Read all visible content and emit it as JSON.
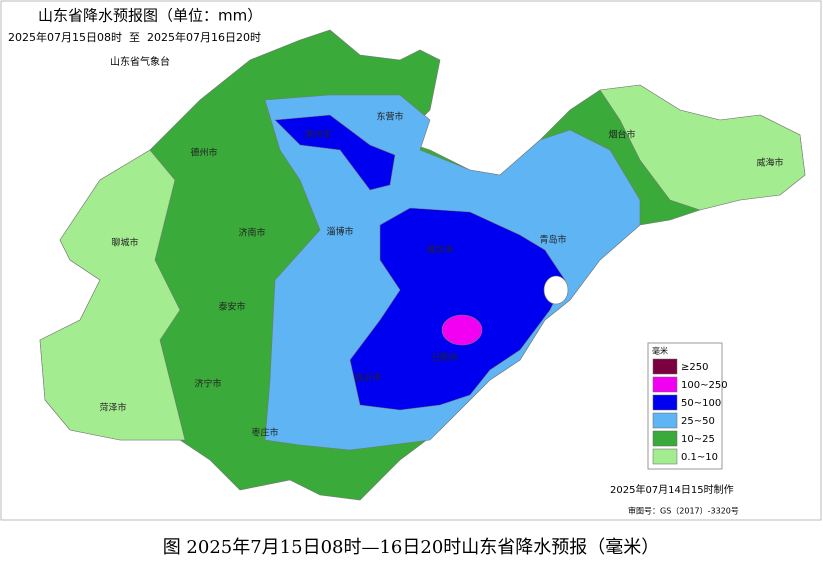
{
  "header": {
    "title": "山东省降水预报图（单位：mm）",
    "period": "2025年07月15日08时  至  2025年07月16日20时",
    "issuer": "山东省气象台"
  },
  "cities": [
    "滨州市",
    "东营市",
    "烟台市",
    "威海市",
    "德州市",
    "聊城市",
    "济南市",
    "淄博市",
    "潍坊市",
    "青岛市",
    "泰安市",
    "日照市",
    "济宁市",
    "临沂市",
    "菏泽市",
    "枣庄市"
  ],
  "legend": {
    "title": "毫米",
    "items": [
      {
        "label": "≥250",
        "color": "#7a0040"
      },
      {
        "label": "100~250",
        "color": "#f200f2"
      },
      {
        "label": "50~100",
        "color": "#0000f0"
      },
      {
        "label": "25~50",
        "color": "#5fb4f4"
      },
      {
        "label": "10~25",
        "color": "#3aaa3a"
      },
      {
        "label": "0.1~10",
        "color": "#a4ec90"
      }
    ]
  },
  "footer": {
    "made": "2025年07月14日15时制作",
    "approval": "审图号：GS（2017）-3320号"
  },
  "caption": "图 2025年7月15日08时—16日20时山东省降水预报（毫米）"
}
